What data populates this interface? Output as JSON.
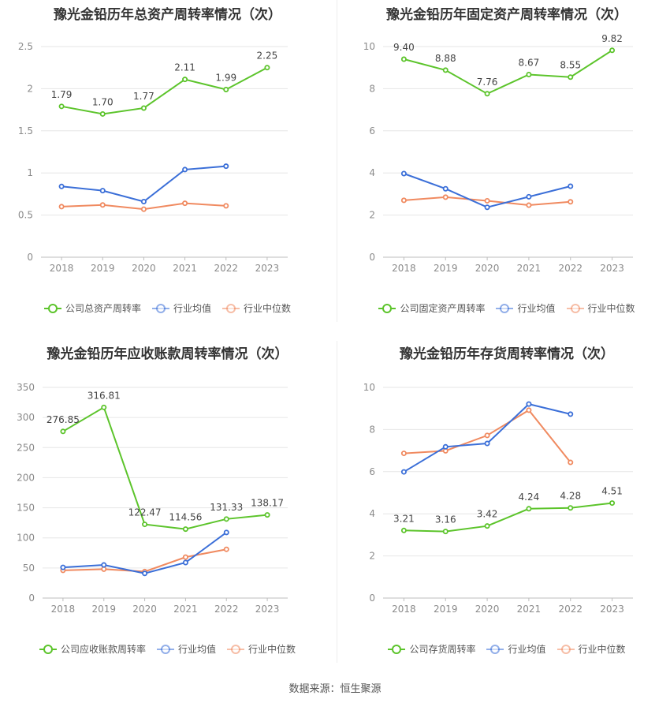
{
  "colors": {
    "company": "#5cc42b",
    "avg": "#3b6fd8",
    "median": "#f08a60",
    "grid": "#e6e6e6"
  },
  "source": "数据来源：恒生聚源",
  "chart_data": [
    {
      "type": "line",
      "title": "豫光金铅历年总资产周转率情况（次）",
      "x": [
        "2018",
        "2019",
        "2020",
        "2021",
        "2022",
        "2023"
      ],
      "ylim": [
        0,
        2.5
      ],
      "yticks": [
        "0",
        "0.5",
        "1",
        "1.5",
        "2",
        "2.5"
      ],
      "grid": true,
      "legend_position": "bottom",
      "series": [
        {
          "name": "公司总资产周转率",
          "values": [
            1.79,
            1.7,
            1.77,
            2.11,
            1.99,
            2.25
          ],
          "labels": [
            "1.79",
            "1.70",
            "1.77",
            "2.11",
            "1.99",
            "2.25"
          ]
        },
        {
          "name": "行业均值",
          "values": [
            0.84,
            0.79,
            0.66,
            1.04,
            1.08,
            null
          ]
        },
        {
          "name": "行业中位数",
          "values": [
            0.6,
            0.62,
            0.57,
            0.64,
            0.61,
            null
          ]
        }
      ]
    },
    {
      "type": "line",
      "title": "豫光金铅历年固定资产周转率情况（次）",
      "x": [
        "2018",
        "2019",
        "2020",
        "2021",
        "2022",
        "2023"
      ],
      "ylim": [
        0,
        10
      ],
      "yticks": [
        "0",
        "2",
        "4",
        "6",
        "8",
        "10"
      ],
      "grid": true,
      "legend_position": "bottom",
      "series": [
        {
          "name": "公司固定资产周转率",
          "values": [
            9.4,
            8.88,
            7.76,
            8.67,
            8.55,
            9.82
          ],
          "labels": [
            "9.40",
            "8.88",
            "7.76",
            "8.67",
            "8.55",
            "9.82"
          ]
        },
        {
          "name": "行业均值",
          "values": [
            3.97,
            3.25,
            2.37,
            2.87,
            3.37,
            null
          ]
        },
        {
          "name": "行业中位数",
          "values": [
            2.7,
            2.85,
            2.68,
            2.47,
            2.63,
            null
          ]
        }
      ]
    },
    {
      "type": "line",
      "title": "豫光金铅历年应收账款周转率情况（次）",
      "x": [
        "2018",
        "2019",
        "2020",
        "2021",
        "2022",
        "2023"
      ],
      "ylim": [
        0,
        350
      ],
      "yticks": [
        "0",
        "50",
        "100",
        "150",
        "200",
        "250",
        "300",
        "350"
      ],
      "grid": true,
      "legend_position": "bottom",
      "series": [
        {
          "name": "公司应收账款周转率",
          "values": [
            276.85,
            316.81,
            122.47,
            114.56,
            131.33,
            138.17
          ],
          "labels": [
            "276.85",
            "316.81",
            "122.47",
            "114.56",
            "131.33",
            "138.17"
          ]
        },
        {
          "name": "行业均值",
          "values": [
            51,
            55,
            41,
            59,
            109,
            null
          ]
        },
        {
          "name": "行业中位数",
          "values": [
            46,
            48,
            44,
            68,
            81,
            null
          ]
        }
      ]
    },
    {
      "type": "line",
      "title": "豫光金铅历年存货周转率情况（次）",
      "x": [
        "2018",
        "2019",
        "2020",
        "2021",
        "2022",
        "2023"
      ],
      "ylim": [
        0,
        10
      ],
      "yticks": [
        "0",
        "2",
        "4",
        "6",
        "8",
        "10"
      ],
      "grid": true,
      "legend_position": "bottom",
      "series": [
        {
          "name": "公司存货周转率",
          "values": [
            3.21,
            3.16,
            3.42,
            4.24,
            4.28,
            4.51
          ],
          "labels": [
            "3.21",
            "3.16",
            "3.42",
            "4.24",
            "4.28",
            "4.51"
          ]
        },
        {
          "name": "行业均值",
          "values": [
            5.99,
            7.18,
            7.34,
            9.21,
            8.73,
            null
          ]
        },
        {
          "name": "行业中位数",
          "values": [
            6.87,
            6.99,
            7.72,
            8.92,
            6.44,
            null
          ]
        }
      ]
    }
  ]
}
